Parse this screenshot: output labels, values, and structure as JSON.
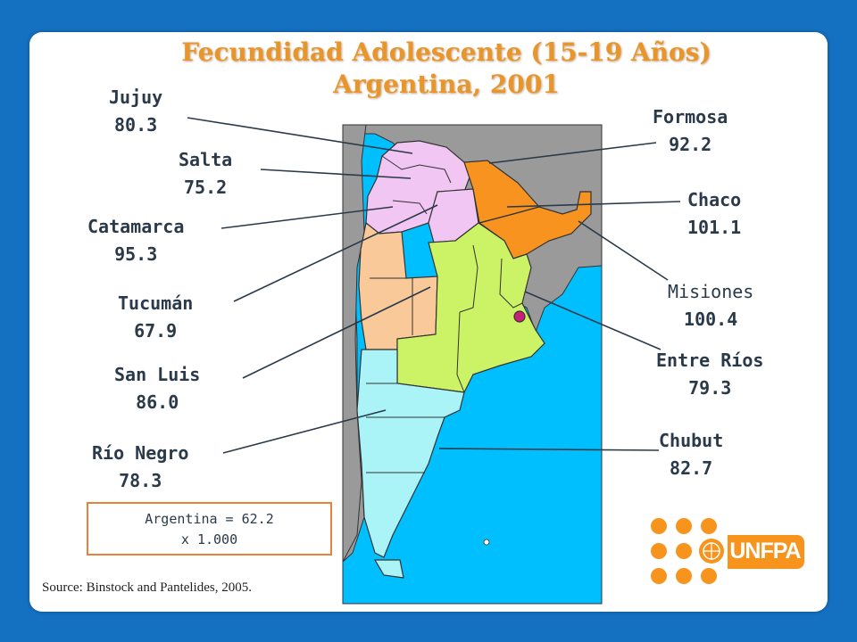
{
  "title": {
    "line1": "Fecundidad Adolescente (15-19 Años)",
    "line2": "Argentina, 2001"
  },
  "labels": {
    "jujuy": {
      "name": "Jujuy",
      "value": "80.3"
    },
    "salta": {
      "name": "Salta",
      "value": "75.2"
    },
    "catamarca": {
      "name": "Catamarca",
      "value": "95.3"
    },
    "tucuman": {
      "name": "Tucumán",
      "value": "67.9"
    },
    "sanluis": {
      "name": "San Luis",
      "value": "86.0"
    },
    "rionegro": {
      "name": "Río Negro",
      "value": "78.3"
    },
    "formosa": {
      "name": "Formosa",
      "value": "92.2"
    },
    "chaco": {
      "name": "Chaco",
      "value": "101.1"
    },
    "misiones": {
      "name": "Misiones",
      "value": "100.4"
    },
    "entrerios": {
      "name": "Entre Ríos",
      "value": "79.3"
    },
    "chubut": {
      "name": "Chubut",
      "value": "82.7"
    }
  },
  "total": {
    "line1": "Argentina =  62.2",
    "line2": "x 1.000"
  },
  "source": "Source: Binstock and Pantelides, 2005.",
  "logo": {
    "text": "UNFPA"
  },
  "colors": {
    "background": "#1470c0",
    "title": "#e8962c",
    "northwest_pink": "#f2c6f2",
    "northeast_orange": "#f7931e",
    "central_green": "#ccf266",
    "cuyo_peach": "#fac99a",
    "patagonia_cyan": "#aaf4f8",
    "buenos_aires_city": "#c8207a",
    "ocean": "#00bfff",
    "neighbors": "#9a9a9a",
    "logo_orange": "#f7941d"
  }
}
